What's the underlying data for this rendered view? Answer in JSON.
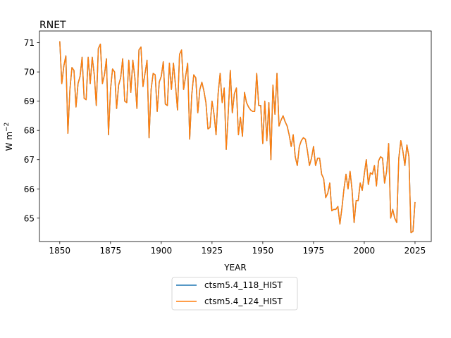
{
  "chart_data": {
    "type": "line",
    "title": "RNET",
    "xlabel": "YEAR",
    "ylabel_main": "W m",
    "ylabel_sup": "−2",
    "xlim": [
      1840,
      2033
    ],
    "ylim": [
      64.2,
      71.4
    ],
    "xticks": [
      1850,
      1875,
      1900,
      1925,
      1950,
      1975,
      2000,
      2025
    ],
    "yticks": [
      65,
      66,
      67,
      68,
      69,
      70,
      71
    ],
    "grid": false,
    "legend_position": "bottom-center, outside",
    "x_start": 1850,
    "x_end": 2023,
    "y_values": [
      71.05,
      69.6,
      70.2,
      70.55,
      67.9,
      69.4,
      70.15,
      70.05,
      68.8,
      69.6,
      69.85,
      70.5,
      69.1,
      69.05,
      70.5,
      69.6,
      70.5,
      69.9,
      68.85,
      70.8,
      70.95,
      69.6,
      69.9,
      70.45,
      67.85,
      69.4,
      70.1,
      70.0,
      68.75,
      69.55,
      69.8,
      70.45,
      69.0,
      68.95,
      70.4,
      69.3,
      70.4,
      69.8,
      68.75,
      70.75,
      70.85,
      69.5,
      69.95,
      70.4,
      67.75,
      69.4,
      69.95,
      69.9,
      68.65,
      69.65,
      69.85,
      70.35,
      68.9,
      68.85,
      70.3,
      69.4,
      70.3,
      69.55,
      68.7,
      70.6,
      70.75,
      69.4,
      69.85,
      70.3,
      67.7,
      69.2,
      69.9,
      69.8,
      68.6,
      69.4,
      69.65,
      69.35,
      68.95,
      68.05,
      68.1,
      69.0,
      68.55,
      67.85,
      69.25,
      69.95,
      68.95,
      69.45,
      67.35,
      68.6,
      70.05,
      68.6,
      69.25,
      69.45,
      67.85,
      68.45,
      67.8,
      69.3,
      68.95,
      68.8,
      68.7,
      68.65,
      68.65,
      69.95,
      68.85,
      68.85,
      67.55,
      69.0,
      67.65,
      68.95,
      67.0,
      69.55,
      68.55,
      69.95,
      68.15,
      68.35,
      68.5,
      68.3,
      68.15,
      67.85,
      67.45,
      67.85,
      67.1,
      66.8,
      67.45,
      67.65,
      67.75,
      67.7,
      67.3,
      66.8,
      67.05,
      67.45,
      66.8,
      67.05,
      67.05,
      66.5,
      66.35,
      65.7,
      65.85,
      66.2,
      65.25,
      65.3,
      65.3,
      65.4,
      64.8,
      65.35,
      66.0,
      66.5,
      66.0,
      66.6,
      65.95,
      64.85,
      65.6,
      65.6,
      66.2,
      65.95,
      66.5,
      67.0,
      66.15,
      66.55,
      66.5,
      66.8,
      66.1,
      66.95,
      67.1,
      67.05,
      66.2,
      66.6,
      67.55,
      65.0,
      65.3,
      65.0,
      64.85,
      67.05,
      67.65,
      67.3,
      66.8,
      67.5,
      67.1,
      64.5,
      64.55,
      65.55
    ],
    "series": [
      {
        "name": "ctsm5.4_118_HIST",
        "color": "#1f77b4",
        "offset": 0
      },
      {
        "name": "ctsm5.4_124_HIST",
        "color": "#ff7f0e",
        "offset": 0
      }
    ]
  }
}
